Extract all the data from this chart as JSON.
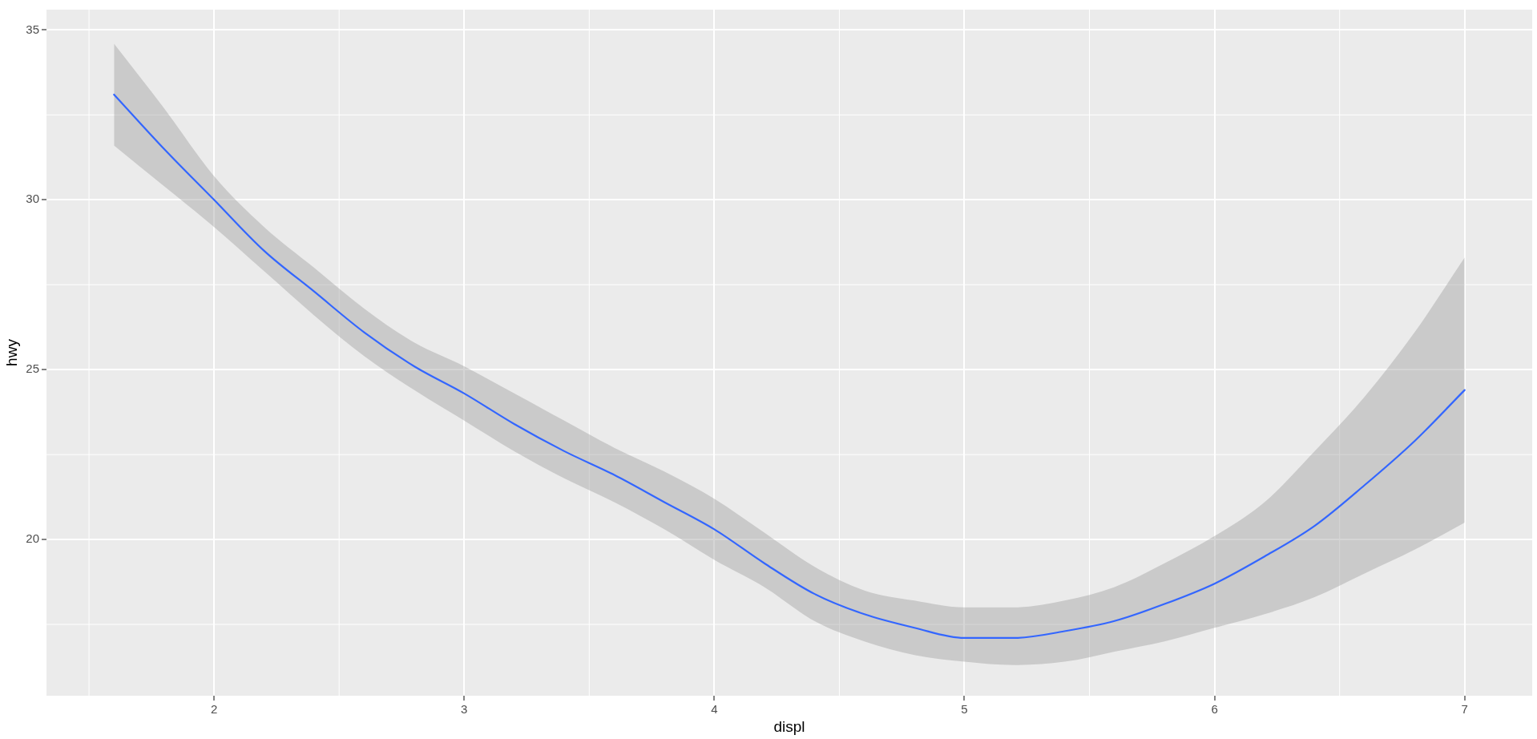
{
  "chart_data": {
    "type": "line",
    "xlabel": "displ",
    "ylabel": "hwy",
    "x": [
      1.6,
      1.8,
      2.0,
      2.2,
      2.4,
      2.6,
      2.8,
      3.0,
      3.2,
      3.4,
      3.6,
      3.8,
      4.0,
      4.2,
      4.4,
      4.6,
      4.8,
      5.0,
      5.2,
      5.4,
      5.6,
      5.8,
      6.0,
      6.2,
      6.4,
      6.6,
      6.8,
      7.0
    ],
    "series": [
      {
        "color": "#3366ff",
        "values": [
          33.1,
          31.5,
          30.0,
          28.5,
          27.3,
          26.1,
          25.1,
          24.3,
          23.4,
          22.6,
          21.9,
          21.1,
          20.3,
          19.3,
          18.4,
          17.8,
          17.4,
          17.1,
          17.1,
          17.3,
          17.6,
          18.1,
          18.7,
          19.5,
          20.4,
          21.6,
          22.9,
          24.4
        ],
        "upper": [
          34.6,
          32.7,
          30.7,
          29.2,
          28.0,
          26.8,
          25.8,
          25.1,
          24.3,
          23.5,
          22.7,
          22.0,
          21.2,
          20.2,
          19.2,
          18.5,
          18.2,
          18.0,
          18.0,
          18.2,
          18.6,
          19.3,
          20.1,
          21.1,
          22.6,
          24.2,
          26.1,
          28.3
        ],
        "lower": [
          31.6,
          30.4,
          29.2,
          27.9,
          26.6,
          25.4,
          24.4,
          23.5,
          22.6,
          21.8,
          21.1,
          20.3,
          19.4,
          18.6,
          17.6,
          17.0,
          16.6,
          16.4,
          16.3,
          16.4,
          16.7,
          17.0,
          17.4,
          17.8,
          18.3,
          19.0,
          19.7,
          20.5
        ]
      }
    ],
    "xlim": [
      1.33,
      7.27
    ],
    "ylim": [
      15.4,
      35.6
    ],
    "xticks": [
      2,
      3,
      4,
      5,
      6,
      7
    ],
    "yticks": [
      20,
      25,
      30,
      35
    ],
    "grid": true,
    "marker": "none",
    "line_style": "solid"
  }
}
